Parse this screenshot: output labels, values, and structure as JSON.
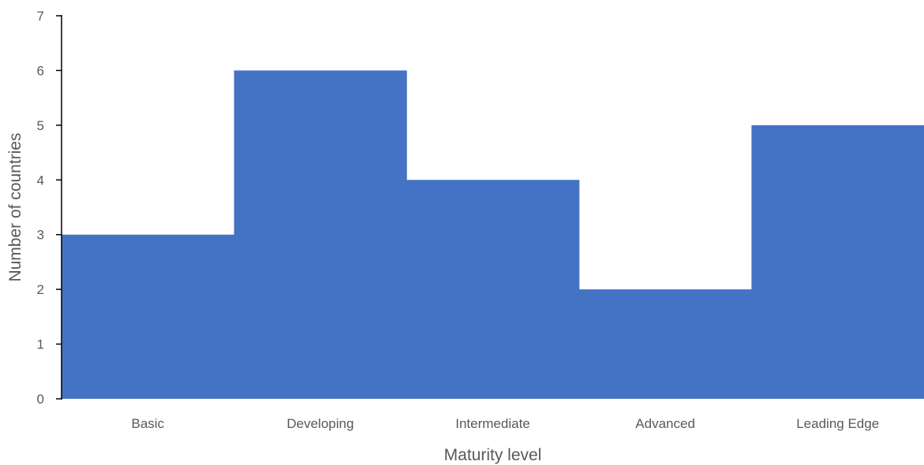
{
  "chart_data": {
    "type": "bar",
    "categories": [
      "Basic",
      "Developing",
      "Intermediate",
      "Advanced",
      "Leading Edge"
    ],
    "values": [
      3,
      6,
      4,
      2,
      5
    ],
    "title": "",
    "xlabel": "Maturity level",
    "ylabel": "Number of countries",
    "ylim": [
      0,
      7
    ],
    "yticks": [
      "0",
      "1",
      "2",
      "3",
      "4",
      "5",
      "6",
      "7"
    ],
    "bar_color": "#4472C4",
    "gap_width": 0,
    "grid": false,
    "legend": "none"
  }
}
